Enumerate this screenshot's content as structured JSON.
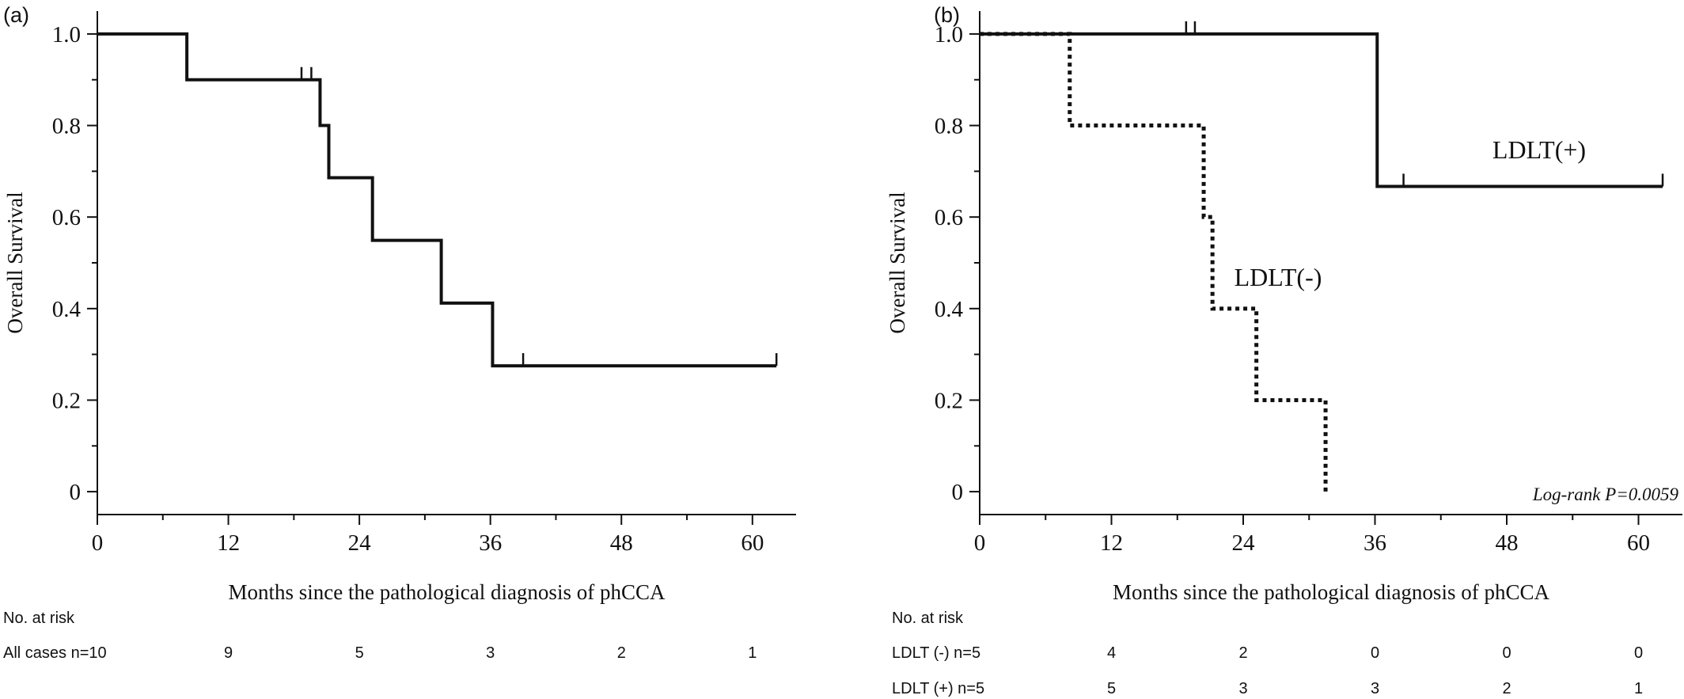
{
  "chart_data": [
    {
      "panel": "(a)",
      "type": "line",
      "step": "post",
      "xlabel": "Months since the pathological diagnosis of phCCA",
      "ylabel": "Overall Survival",
      "xlim": [
        0,
        64
      ],
      "ylim": [
        -0.05,
        1.05
      ],
      "xticks": [
        0,
        12,
        24,
        36,
        48,
        60
      ],
      "yticks": [
        0,
        0.2,
        0.4,
        0.6,
        0.8,
        1.0
      ],
      "ytick_labels": [
        "0",
        "0.2",
        "0.4",
        "0.6",
        "0.8",
        "1.0"
      ],
      "grid": false,
      "series": [
        {
          "style": "solid",
          "x": [
            0,
            8.2,
            20.4,
            21.2,
            25.2,
            31.5,
            36.2,
            62.2
          ],
          "y": [
            1.0,
            0.9,
            0.8,
            0.686,
            0.549,
            0.412,
            0.275,
            0.275
          ],
          "censored_x": [
            18.7,
            19.6,
            39.0,
            62.2
          ]
        }
      ],
      "risk_table": {
        "header": "No. at risk",
        "times": [
          12,
          24,
          36,
          48,
          60
        ],
        "rows": [
          {
            "label": "All cases n=10",
            "values": [
              "9",
              "5",
              "3",
              "2",
              "1"
            ]
          }
        ]
      }
    },
    {
      "panel": "(b)",
      "type": "line",
      "step": "post",
      "xlabel": "Months since the pathological diagnosis of phCCA",
      "ylabel": "Overall Survival",
      "xlim": [
        0,
        64
      ],
      "ylim": [
        -0.05,
        1.05
      ],
      "xticks": [
        0,
        12,
        24,
        36,
        48,
        60
      ],
      "yticks": [
        0,
        0.2,
        0.4,
        0.6,
        0.8,
        1.0
      ],
      "ytick_labels": [
        "0",
        "0.2",
        "0.4",
        "0.6",
        "0.8",
        "1.0"
      ],
      "grid": false,
      "annotation": "Log-rank P=0.0059",
      "series": [
        {
          "name": "LDLT(+)",
          "style": "solid",
          "x": [
            0,
            36.2,
            62.2
          ],
          "y": [
            1.0,
            0.667,
            0.667
          ],
          "censored_x": [
            18.8,
            19.6,
            38.6,
            62.2
          ]
        },
        {
          "name": "LDLT(-)",
          "style": "dotted",
          "x": [
            0,
            8.2,
            20.4,
            21.2,
            25.2,
            31.5
          ],
          "y": [
            1.0,
            0.8,
            0.6,
            0.4,
            0.2,
            0.0
          ],
          "censored_x": []
        }
      ],
      "risk_table": {
        "header": "No. at risk",
        "times": [
          12,
          24,
          36,
          48,
          60
        ],
        "rows": [
          {
            "label": "LDLT (-)  n=5",
            "values": [
              "4",
              "2",
              "0",
              "0",
              "0"
            ]
          },
          {
            "label": "LDLT (+) n=5",
            "values": [
              "5",
              "3",
              "3",
              "2",
              "1"
            ]
          }
        ]
      }
    }
  ]
}
